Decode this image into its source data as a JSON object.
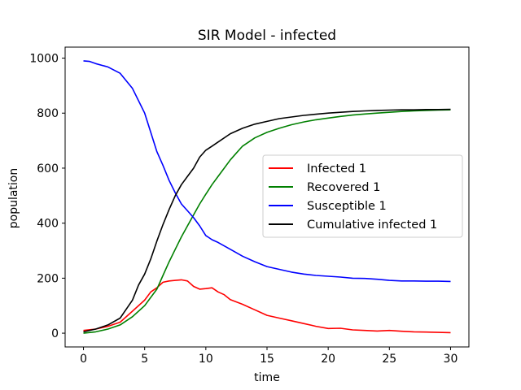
{
  "chart_data": {
    "type": "line",
    "title": "SIR Model - infected",
    "xlabel": "time",
    "ylabel": "population",
    "xlim": [
      -1.5,
      31.5
    ],
    "ylim": [
      -50,
      1040
    ],
    "xticks": [
      0,
      5,
      10,
      15,
      20,
      25,
      30
    ],
    "yticks": [
      0,
      200,
      400,
      600,
      800,
      1000
    ],
    "grid": false,
    "legend_position": "center-right",
    "series": [
      {
        "name": "Infected 1",
        "color": "#ff0000",
        "x": [
          0,
          1,
          2,
          3,
          4,
          5,
          5.5,
          6,
          6.5,
          7,
          7.5,
          8,
          8.5,
          9,
          9.5,
          10,
          10.5,
          11,
          11.5,
          12,
          13,
          14,
          15,
          16,
          17,
          18,
          19,
          20,
          21,
          22,
          23,
          24,
          25,
          26,
          27,
          28,
          29,
          30
        ],
        "y": [
          10,
          15,
          25,
          40,
          80,
          120,
          150,
          165,
          185,
          190,
          192,
          194,
          190,
          170,
          160,
          162,
          165,
          150,
          140,
          122,
          105,
          85,
          65,
          55,
          45,
          35,
          25,
          17,
          18,
          12,
          10,
          8,
          10,
          7,
          5,
          4,
          3,
          2
        ]
      },
      {
        "name": "Recovered 1",
        "color": "#008000",
        "x": [
          0,
          1,
          2,
          3,
          4,
          5,
          6,
          6.5,
          7,
          7.5,
          8,
          8.5,
          9,
          9.5,
          10,
          10.5,
          11,
          11.5,
          12,
          12.5,
          13,
          14,
          15,
          16,
          17,
          18,
          19,
          20,
          21,
          22,
          23,
          24,
          25,
          26,
          27,
          28,
          29,
          30
        ],
        "y": [
          0,
          5,
          15,
          30,
          60,
          100,
          160,
          210,
          260,
          305,
          350,
          390,
          430,
          470,
          505,
          540,
          570,
          600,
          630,
          655,
          680,
          710,
          730,
          745,
          758,
          768,
          776,
          782,
          788,
          793,
          797,
          800,
          803,
          806,
          808,
          810,
          811,
          812
        ]
      },
      {
        "name": "Susceptible 1",
        "color": "#0000ff",
        "x": [
          0,
          0.5,
          1,
          2,
          3,
          4,
          5,
          5.5,
          6,
          6.5,
          7,
          7.5,
          8,
          8.5,
          9,
          9.5,
          10,
          10.5,
          11,
          12,
          13,
          14,
          15,
          16,
          17,
          18,
          19,
          20,
          21,
          22,
          23,
          24,
          25,
          26,
          27,
          28,
          29,
          30
        ],
        "y": [
          990,
          988,
          980,
          968,
          945,
          890,
          800,
          730,
          660,
          610,
          555,
          510,
          470,
          445,
          420,
          390,
          355,
          340,
          330,
          305,
          280,
          260,
          242,
          232,
          222,
          215,
          210,
          207,
          204,
          200,
          199,
          196,
          192,
          190,
          190,
          189,
          189,
          188
        ]
      },
      {
        "name": "Cumulative infected 1",
        "color": "#000000",
        "x": [
          0,
          1,
          2,
          3,
          4,
          4.5,
          5,
          5.5,
          6,
          6.5,
          7,
          7.5,
          8,
          8.5,
          9,
          9.5,
          10,
          10.5,
          11,
          12,
          13,
          14,
          15,
          16,
          17,
          18,
          19,
          20,
          21,
          22,
          23,
          24,
          25,
          26,
          27,
          28,
          29,
          30
        ],
        "y": [
          5,
          15,
          30,
          55,
          120,
          175,
          215,
          270,
          335,
          395,
          450,
          500,
          540,
          570,
          600,
          640,
          665,
          680,
          695,
          725,
          745,
          760,
          770,
          780,
          786,
          792,
          796,
          800,
          803,
          806,
          808,
          810,
          811,
          812,
          812,
          813,
          813,
          814
        ]
      }
    ]
  }
}
